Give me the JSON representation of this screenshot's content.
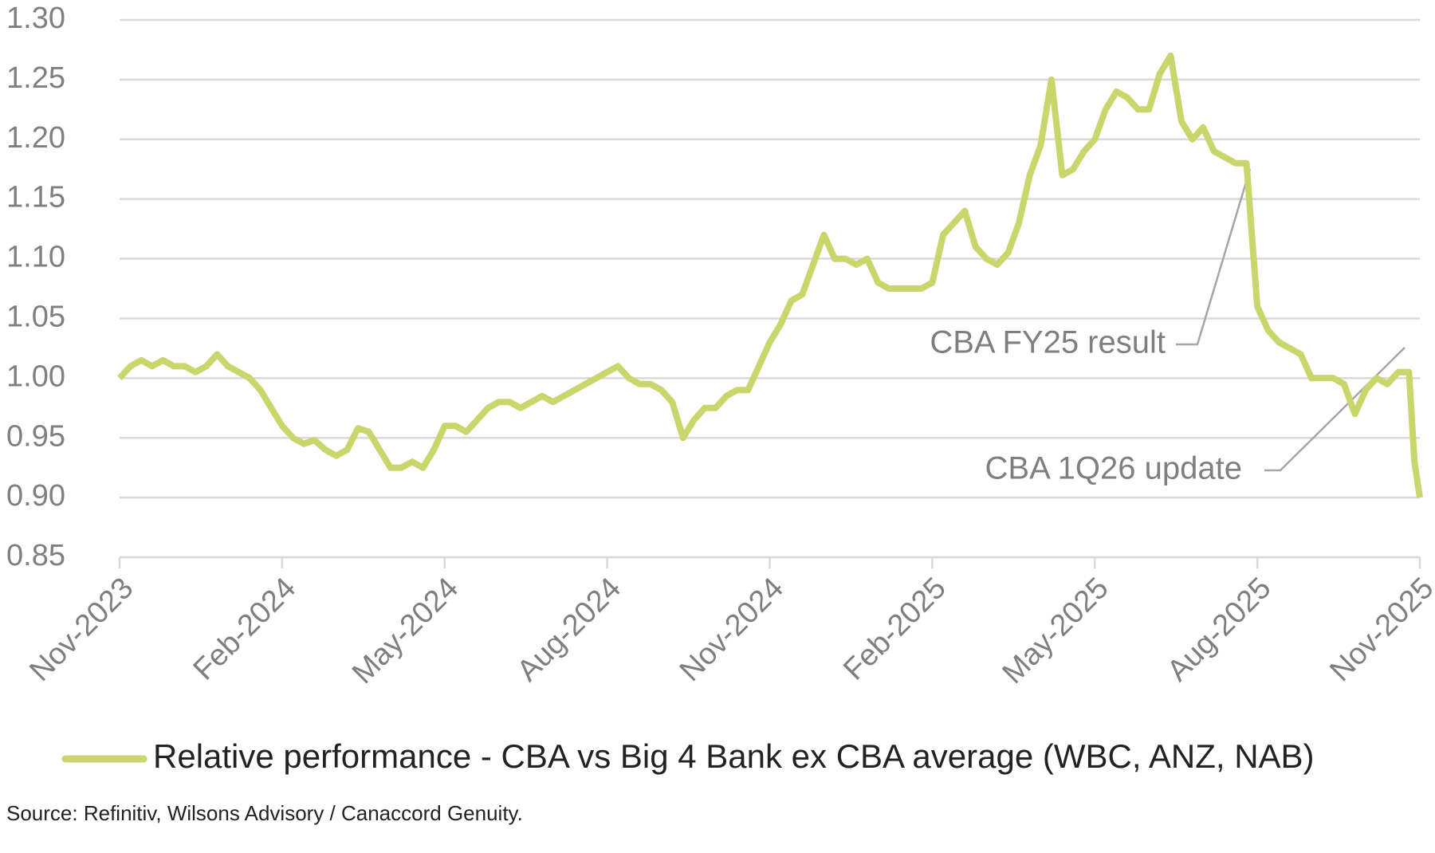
{
  "chart_data": {
    "type": "line",
    "x": [
      0,
      0.2,
      0.4,
      0.6,
      0.8,
      1,
      1.2,
      1.4,
      1.6,
      1.8,
      2,
      2.2,
      2.4,
      2.6,
      2.8,
      3,
      3.2,
      3.4,
      3.6,
      3.8,
      4,
      4.2,
      4.4,
      4.6,
      4.8,
      5,
      5.2,
      5.4,
      5.6,
      5.8,
      6,
      6.2,
      6.4,
      6.6,
      6.8,
      7,
      7.2,
      7.4,
      7.6,
      7.8,
      8,
      8.2,
      8.4,
      8.6,
      8.8,
      9,
      9.2,
      9.4,
      9.6,
      9.8,
      10,
      10.2,
      10.4,
      10.6,
      10.8,
      11,
      11.2,
      11.4,
      11.6,
      11.8,
      12,
      12.2,
      12.4,
      12.6,
      12.8,
      13,
      13.2,
      13.4,
      13.6,
      13.8,
      14,
      14.2,
      14.4,
      14.6,
      14.8,
      15,
      15.2,
      15.4,
      15.6,
      15.8,
      16,
      16.2,
      16.4,
      16.6,
      16.8,
      17,
      17.2,
      17.4,
      17.6,
      17.8,
      18,
      18.2,
      18.4,
      18.6,
      18.8,
      19,
      19.2,
      19.4,
      19.6,
      19.8,
      20,
      20.2,
      20.4,
      20.6,
      20.8,
      21,
      21.2,
      21.4,
      21.6,
      21.8,
      22,
      22.2,
      22.4,
      22.6,
      22.8,
      23,
      23.2,
      23.4,
      23.6,
      23.8,
      23.9,
      24
    ],
    "series": [
      {
        "name": "Relative performance - CBA vs Big 4 Bank ex CBA average (WBC, ANZ, NAB)",
        "color": "#c8d66c",
        "values": [
          1.0,
          1.01,
          1.015,
          1.01,
          1.015,
          1.01,
          1.01,
          1.005,
          1.01,
          1.02,
          1.01,
          1.005,
          1.0,
          0.99,
          0.975,
          0.96,
          0.95,
          0.945,
          0.948,
          0.94,
          0.935,
          0.94,
          0.958,
          0.955,
          0.94,
          0.925,
          0.925,
          0.93,
          0.925,
          0.94,
          0.96,
          0.96,
          0.955,
          0.965,
          0.975,
          0.98,
          0.98,
          0.975,
          0.98,
          0.985,
          0.98,
          0.985,
          0.99,
          0.995,
          1.0,
          1.005,
          1.01,
          1.0,
          0.995,
          0.995,
          0.99,
          0.98,
          0.95,
          0.965,
          0.975,
          0.975,
          0.985,
          0.99,
          0.99,
          1.01,
          1.03,
          1.045,
          1.065,
          1.07,
          1.095,
          1.12,
          1.1,
          1.1,
          1.095,
          1.1,
          1.08,
          1.075,
          1.075,
          1.075,
          1.075,
          1.08,
          1.12,
          1.13,
          1.14,
          1.11,
          1.1,
          1.095,
          1.105,
          1.13,
          1.17,
          1.195,
          1.25,
          1.17,
          1.175,
          1.19,
          1.2,
          1.225,
          1.24,
          1.235,
          1.225,
          1.225,
          1.255,
          1.27,
          1.215,
          1.2,
          1.21,
          1.19,
          1.185,
          1.18,
          1.18,
          1.06,
          1.04,
          1.03,
          1.025,
          1.02,
          1.0,
          1.0,
          1.0,
          0.995,
          0.97,
          0.99,
          1.0,
          0.995,
          1.005,
          1.005,
          0.93,
          0.9
        ]
      }
    ],
    "xlim": [
      0,
      24
    ],
    "xticks": [
      {
        "value": 0,
        "label": "Nov-2023"
      },
      {
        "value": 3,
        "label": "Feb-2024"
      },
      {
        "value": 6,
        "label": "May-2024"
      },
      {
        "value": 9,
        "label": "Aug-2024"
      },
      {
        "value": 12,
        "label": "Nov-2024"
      },
      {
        "value": 15,
        "label": "Feb-2025"
      },
      {
        "value": 18,
        "label": "May-2025"
      },
      {
        "value": 21,
        "label": "Aug-2025"
      },
      {
        "value": 24,
        "label": "Nov-2025"
      }
    ],
    "ylim": [
      0.85,
      1.3
    ],
    "yticks": [
      0.85,
      {
        "value": 0.9,
        "label": "0.90"
      },
      0.95,
      {
        "value": 1.0,
        "label": "1.00"
      },
      1.05,
      {
        "value": 1.1,
        "label": "1.10"
      },
      1.15,
      {
        "value": 1.2,
        "label": "1.20"
      },
      1.25,
      {
        "value": 1.3,
        "label": "1.30"
      }
    ],
    "grid": true,
    "annotations": [
      "CBA FY25 result",
      "CBA 1Q26 update"
    ],
    "source": "Source: Refinitiv, Wilsons Advisory / Canaccord Genuity."
  }
}
